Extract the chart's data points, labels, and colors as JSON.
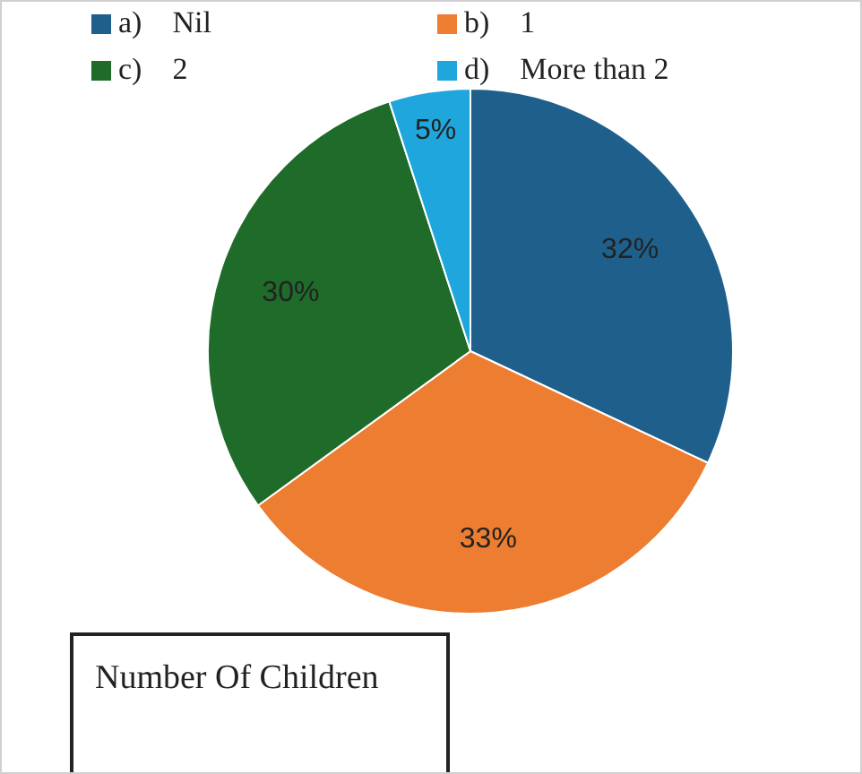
{
  "chart_data": {
    "type": "pie",
    "title": "Number Of Children",
    "categories": [
      "a)    Nil",
      "b)    1",
      "c)    2",
      "d)    More than 2"
    ],
    "values": [
      32,
      33,
      30,
      5
    ],
    "colors": [
      "#1f5f8b",
      "#ed7d31",
      "#1e6b2a",
      "#1fa6dc"
    ],
    "value_labels": [
      "32%",
      "33%",
      "30%",
      "5%"
    ],
    "legend": "top"
  }
}
